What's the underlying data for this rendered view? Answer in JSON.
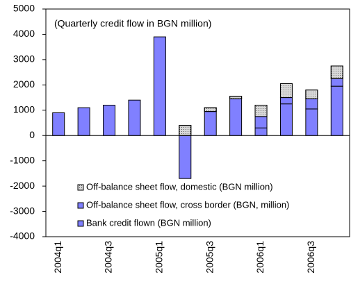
{
  "chart_data": {
    "type": "stacked_bar",
    "annotation": "(Quarterly credit flow  in BGN million)",
    "categories": [
      "2004q1",
      null,
      "2004q3",
      null,
      "2005q1",
      null,
      "2005q3",
      null,
      "2006q1",
      null,
      "2006q3",
      null
    ],
    "series": [
      {
        "name": "Bank credit flown (BGN million)",
        "color": "#8080ff",
        "values": [
          900,
          1100,
          1200,
          1400,
          3900,
          -1700,
          950,
          1450,
          300,
          1250,
          1050,
          1950
        ]
      },
      {
        "name": "Off-balance sheet flow, cross border (BGN, million)",
        "color": "#8080ff",
        "values": [
          0,
          0,
          0,
          0,
          0,
          0,
          0,
          0,
          450,
          250,
          400,
          300
        ]
      },
      {
        "name": "Off-balance sheet flow, domestic (BGN million)",
        "color": "#d8d8d8",
        "pattern": "dots",
        "values": [
          0,
          0,
          0,
          0,
          0,
          400,
          150,
          100,
          450,
          550,
          350,
          500
        ]
      }
    ],
    "ylim": [
      -4000,
      5000
    ],
    "yticks": [
      -4000,
      -3000,
      -2000,
      -1000,
      0,
      1000,
      2000,
      3000,
      4000,
      5000
    ]
  }
}
